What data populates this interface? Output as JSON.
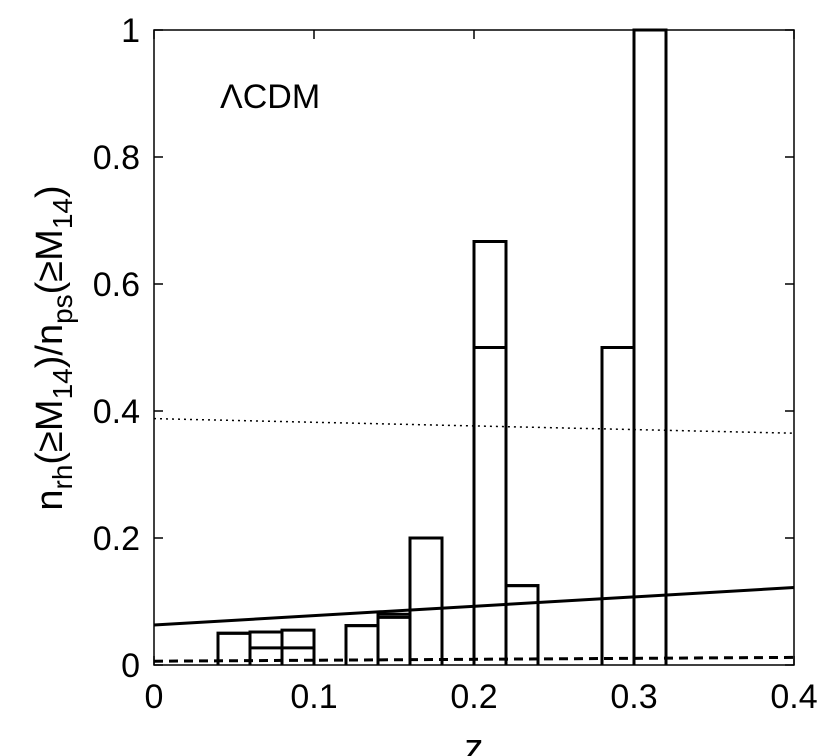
{
  "chart_data": {
    "type": "histogram",
    "annotation": "ΛCDM",
    "xlabel": "z",
    "ylabel_parts": [
      "n",
      "rh",
      "(≥M",
      "14",
      ")/n",
      "ps",
      "(≥M",
      "14",
      ")"
    ],
    "xlim": [
      0,
      0.4
    ],
    "ylim": [
      0,
      1
    ],
    "xticks": [
      "0",
      "0.1",
      "0.2",
      "0.3",
      "0.4"
    ],
    "yticks": [
      "0",
      "0.2",
      "0.4",
      "0.6",
      "0.8",
      "1"
    ],
    "grid": false,
    "histograms": [
      {
        "edges": [
          0.04,
          0.06,
          0.08,
          0.1,
          0.12,
          0.14,
          0.16,
          0.18,
          0.2,
          0.22,
          0.24,
          0.26,
          0.28,
          0.3,
          0.32
        ],
        "values": [
          0.05,
          0.052,
          0.055,
          0,
          0.062,
          0.075,
          0.2,
          0,
          0.667,
          0.125,
          0,
          0,
          0.5,
          1.0
        ]
      },
      {
        "edges": [
          0.04,
          0.06,
          0.08,
          0.1,
          0.12,
          0.14,
          0.16,
          0.18,
          0.2,
          0.22,
          0.24,
          0.26,
          0.28,
          0.3,
          0.32
        ],
        "values": [
          0.05,
          0.027,
          0.027,
          0,
          0.062,
          0.08,
          0.2,
          0,
          0.5,
          0.125,
          0,
          0,
          0.5,
          1.0
        ]
      }
    ],
    "lines": [
      {
        "style": "solid",
        "x": [
          0,
          0.4
        ],
        "y": [
          0.063,
          0.122
        ]
      },
      {
        "style": "dotted",
        "x": [
          0,
          0.4
        ],
        "y": [
          0.388,
          0.365
        ]
      },
      {
        "style": "dashed",
        "x": [
          0,
          0.4
        ],
        "y": [
          0.006,
          0.012
        ]
      }
    ]
  }
}
